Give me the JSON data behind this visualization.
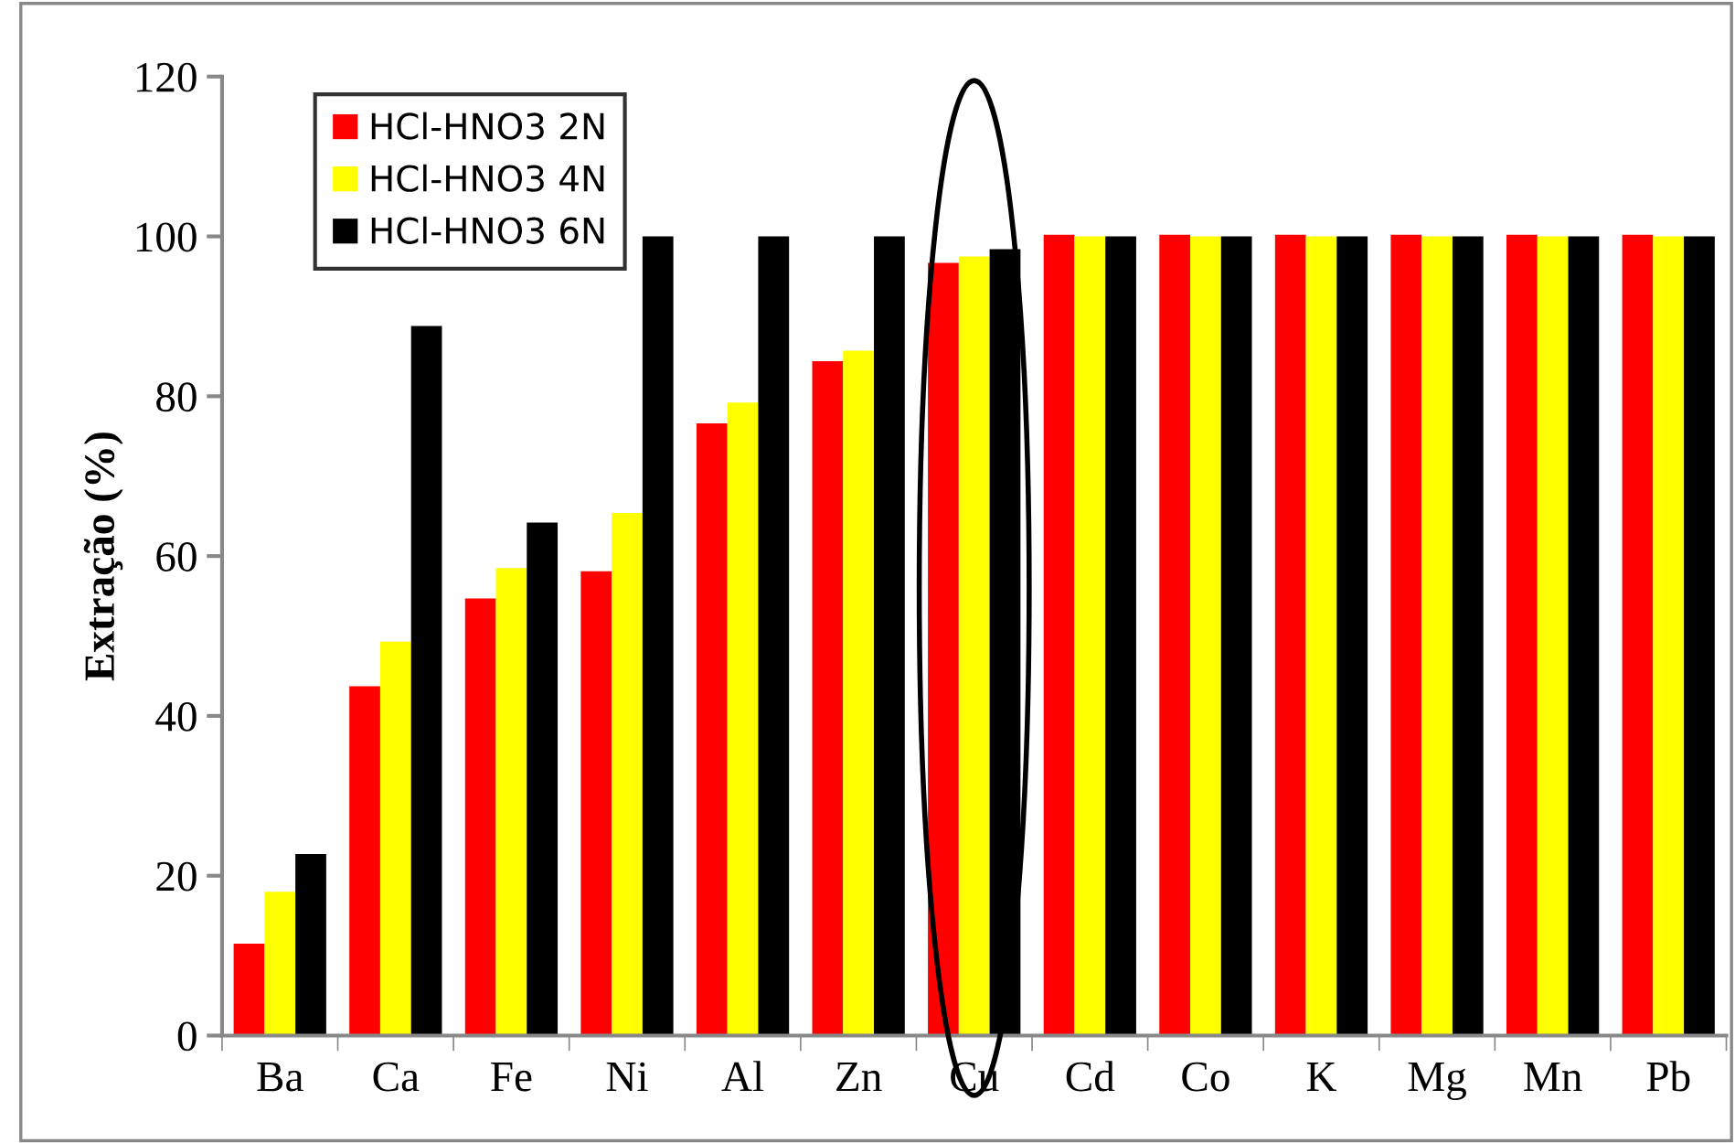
{
  "chart_data": {
    "type": "bar",
    "ylabel": "Extração (%)",
    "categories": [
      "Ba",
      "Ca",
      "Fe",
      "Ni",
      "Al",
      "Zn",
      "Cu",
      "Cd",
      "Co",
      "K",
      "Mg",
      "Mn",
      "Pb"
    ],
    "series": [
      {
        "name": "HCl-HNO3 2N",
        "color": "#ff0000",
        "values": [
          11.5,
          43.7,
          54.7,
          58.1,
          76.6,
          84.4,
          96.7,
          100.2,
          100.2,
          100.2,
          100.2,
          100.2,
          100.2
        ]
      },
      {
        "name": "HCl-HNO3 4N",
        "color": "#ffff00",
        "values": [
          18.0,
          49.3,
          58.5,
          65.4,
          79.2,
          85.7,
          97.5,
          100,
          100,
          100,
          100,
          100,
          100
        ]
      },
      {
        "name": "HCl-HNO3 6N",
        "color": "#000000",
        "values": [
          22.7,
          88.8,
          64.2,
          100,
          100,
          100,
          98.4,
          100,
          100,
          100,
          100,
          100,
          100
        ]
      }
    ],
    "ylim": [
      0,
      120
    ],
    "yticks": [
      0,
      20,
      40,
      60,
      80,
      100,
      120
    ],
    "grid": false,
    "legend": "top left"
  }
}
